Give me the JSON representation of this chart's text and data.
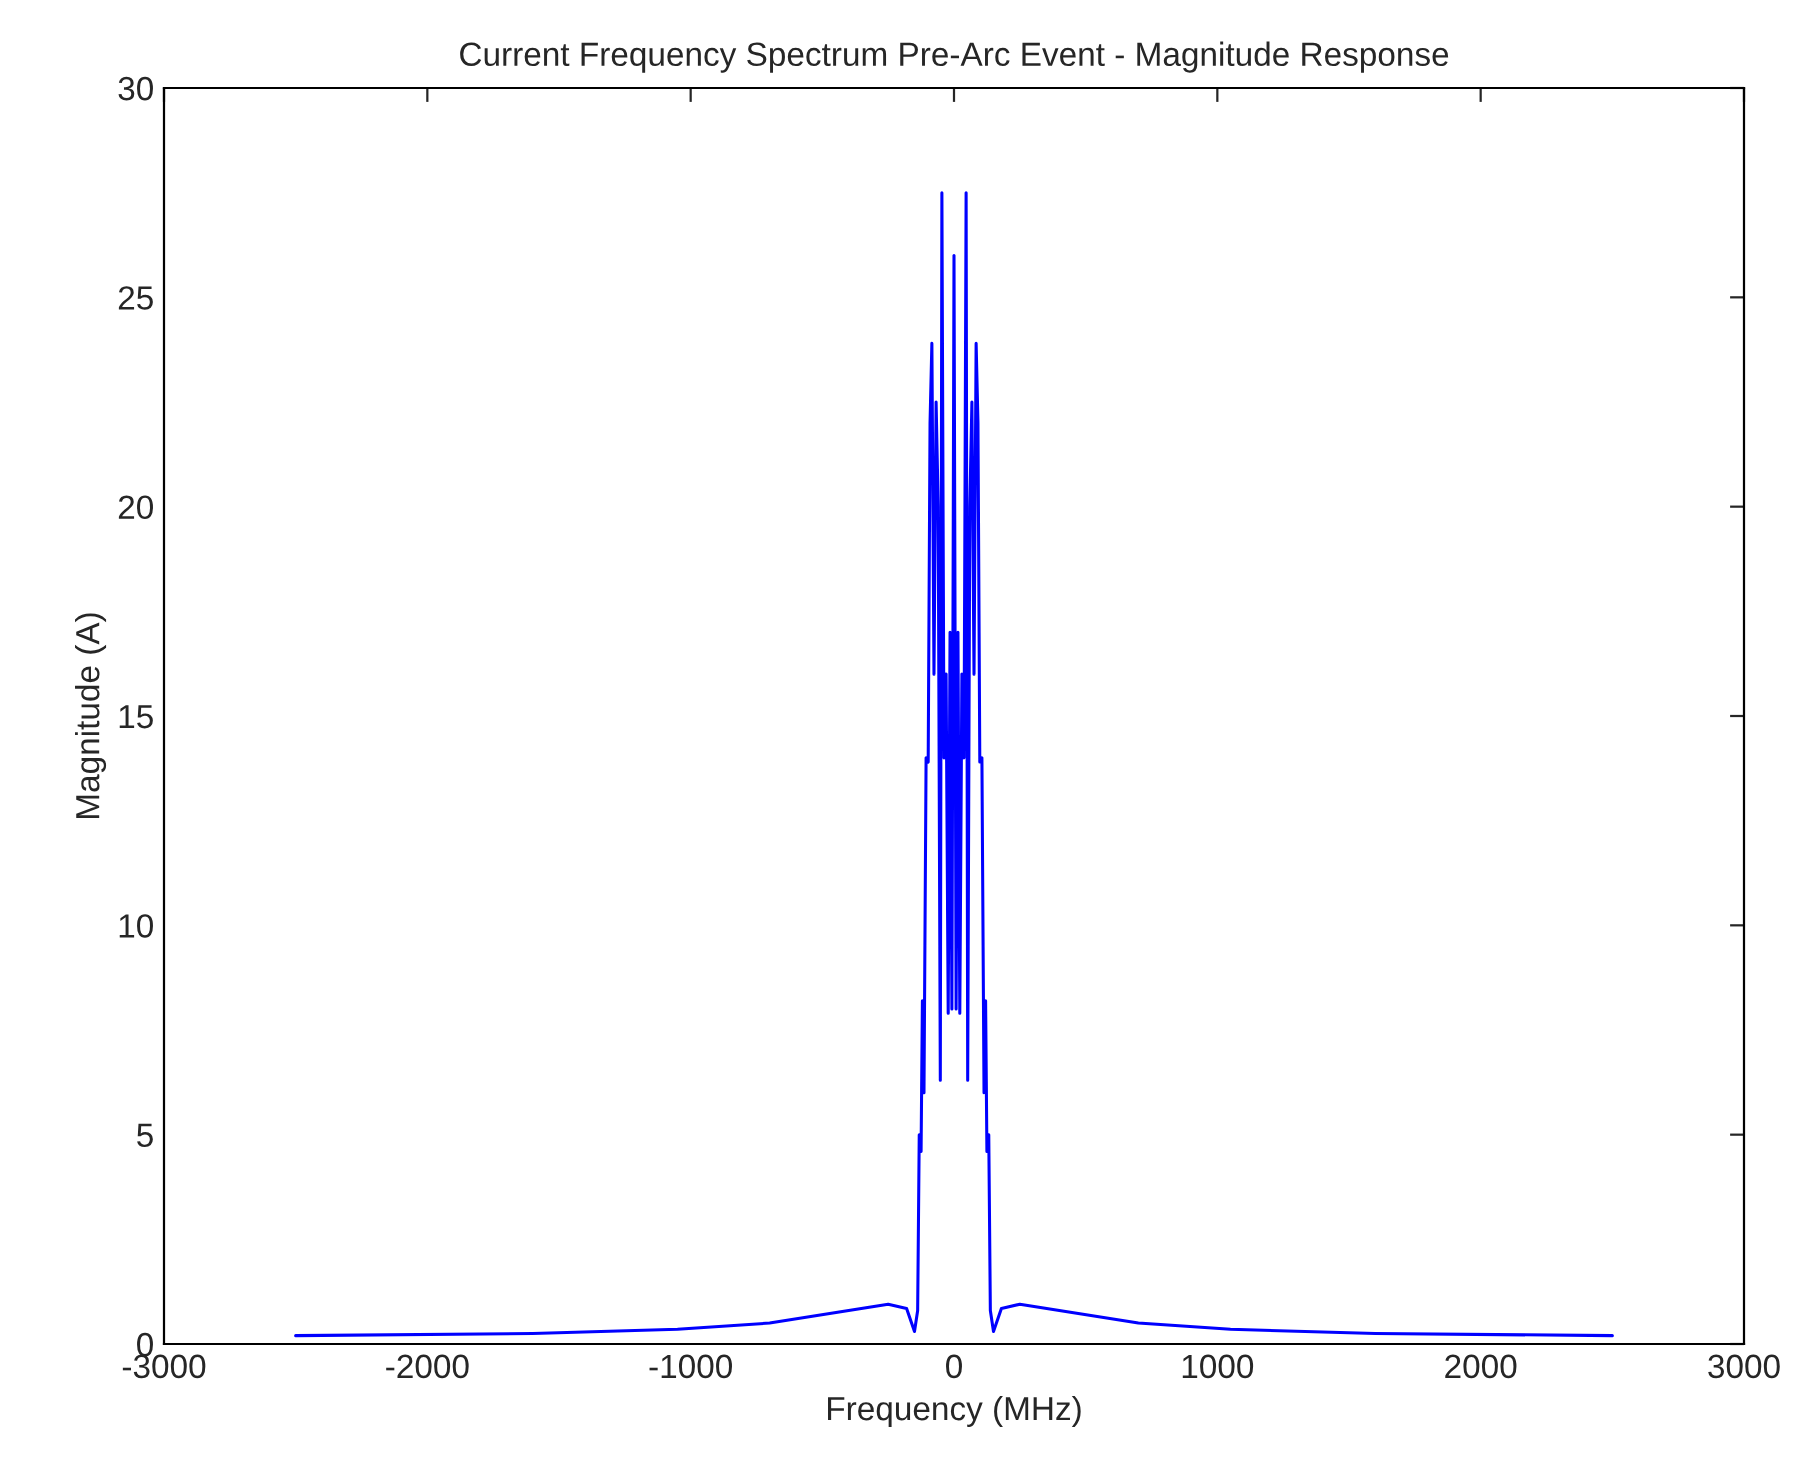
{
  "chart_data": {
    "type": "line",
    "title": "Current Frequency Spectrum Pre-Arc Event - Magnitude Response",
    "xlabel": "Frequency (MHz)",
    "ylabel": "Magnitude (A)",
    "x": [
      -2500,
      -1600,
      -1050,
      -700,
      -400,
      -250,
      -180,
      -150,
      -138,
      -132,
      -125,
      -120,
      -114,
      -106,
      -98,
      -91,
      -84,
      -76,
      -68,
      -60,
      -52,
      -46,
      -38,
      -30,
      -22,
      -15,
      -8,
      0,
      8,
      15,
      22,
      30,
      38,
      46,
      52,
      60,
      68,
      76,
      84,
      91,
      98,
      106,
      114,
      120,
      125,
      132,
      138,
      150,
      180,
      250,
      400,
      700,
      1050,
      1600,
      2500
    ],
    "series": [
      {
        "color": "#0000ff",
        "values": [
          0.2,
          0.25,
          0.35,
          0.5,
          0.8,
          0.95,
          0.85,
          0.3,
          0.8,
          5.0,
          4.6,
          8.2,
          6.0,
          14.0,
          13.9,
          22.0,
          23.9,
          16.0,
          22.5,
          20.0,
          6.3,
          27.5,
          14.0,
          16.0,
          7.9,
          17.0,
          8.0,
          26.0,
          8.0,
          17.0,
          7.9,
          16.0,
          14.0,
          27.5,
          6.3,
          20.0,
          22.5,
          16.0,
          23.9,
          22.0,
          13.9,
          14.0,
          6.0,
          8.2,
          4.6,
          5.0,
          0.8,
          0.3,
          0.85,
          0.95,
          0.8,
          0.5,
          0.35,
          0.25,
          0.2
        ]
      }
    ],
    "xlim": [
      -3000,
      3000
    ],
    "xticks": [
      -3000,
      -2000,
      -1000,
      0,
      1000,
      2000,
      3000
    ],
    "ylim": [
      0,
      30
    ],
    "yticks": [
      0,
      5,
      10,
      15,
      20,
      25,
      30
    ],
    "grid": false,
    "marker": "none",
    "line_style": "solid"
  }
}
